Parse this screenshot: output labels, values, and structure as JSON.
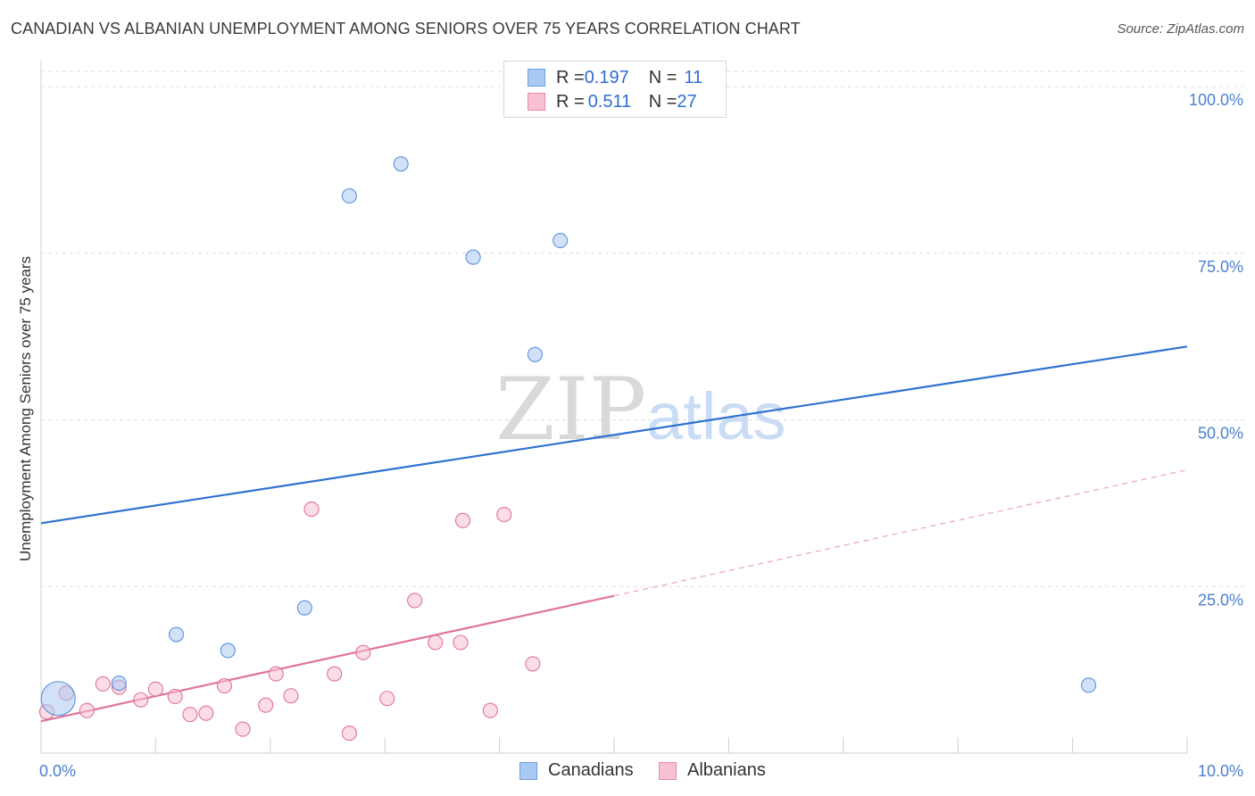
{
  "title": "CANADIAN VS ALBANIAN UNEMPLOYMENT AMONG SENIORS OVER 75 YEARS CORRELATION CHART",
  "source": "Source: ZipAtlas.com",
  "watermark": {
    "part1": "ZIP",
    "part2": "atlas"
  },
  "legend": {
    "rows": [
      {
        "r_label": "R = ",
        "r_value": "0.197",
        "n_label": "N = ",
        "n_value": "11",
        "color": "#a9c9f2",
        "border": "#6c9fe0"
      },
      {
        "r_label": "R = ",
        "r_value": "0.511",
        "n_label": "N = ",
        "n_value": "27",
        "color": "#f7c1d1",
        "border": "#e88aa7"
      }
    ]
  },
  "bottom_legend": [
    {
      "label": "Canadians",
      "color": "#a9c9f2",
      "border": "#6c9fe0"
    },
    {
      "label": "Albanians",
      "color": "#f7c1d1",
      "border": "#e88aa7"
    }
  ],
  "chart_data": {
    "type": "scatter",
    "title": "CANADIAN VS ALBANIAN UNEMPLOYMENT AMONG SENIORS OVER 75 YEARS CORRELATION CHART",
    "xlabel": "",
    "ylabel": "Unemployment Among Seniors over 75 years",
    "xlim": [
      0,
      10
    ],
    "ylim": [
      0,
      100
    ],
    "x_tick_labels": [
      "0.0%",
      "10.0%"
    ],
    "y_tick_values": [
      25,
      50,
      75,
      100
    ],
    "y_tick_labels": [
      "25.0%",
      "50.0%",
      "75.0%",
      "100.0%"
    ],
    "grid": true,
    "series": [
      {
        "name": "Canadians",
        "color": "#5b93dc",
        "fill": "rgba(169,201,242,0.55)",
        "points": [
          {
            "x": 0.15,
            "y": 8.2,
            "big": true
          },
          {
            "x": 0.68,
            "y": 10.5
          },
          {
            "x": 1.18,
            "y": 17.8
          },
          {
            "x": 1.63,
            "y": 15.4
          },
          {
            "x": 2.3,
            "y": 21.8
          },
          {
            "x": 2.69,
            "y": 83.6
          },
          {
            "x": 3.14,
            "y": 88.4
          },
          {
            "x": 3.77,
            "y": 74.4
          },
          {
            "x": 4.31,
            "y": 59.8
          },
          {
            "x": 4.53,
            "y": 76.9
          },
          {
            "x": 9.14,
            "y": 10.2
          }
        ],
        "trend": {
          "x0": 0,
          "y0": 34.5,
          "x1": 10,
          "y1": 61.0
        }
      },
      {
        "name": "Albanians",
        "color": "#e07398",
        "fill": "rgba(247,193,209,0.55)",
        "points": [
          {
            "x": 0.05,
            "y": 6.2
          },
          {
            "x": 0.22,
            "y": 9.0
          },
          {
            "x": 0.4,
            "y": 6.4
          },
          {
            "x": 0.54,
            "y": 10.4
          },
          {
            "x": 0.68,
            "y": 9.9
          },
          {
            "x": 0.87,
            "y": 8.0
          },
          {
            "x": 1.0,
            "y": 9.6
          },
          {
            "x": 1.17,
            "y": 8.5
          },
          {
            "x": 1.3,
            "y": 5.8
          },
          {
            "x": 1.44,
            "y": 6.0
          },
          {
            "x": 1.6,
            "y": 10.1
          },
          {
            "x": 1.76,
            "y": 3.6
          },
          {
            "x": 1.96,
            "y": 7.2
          },
          {
            "x": 2.05,
            "y": 11.9
          },
          {
            "x": 2.18,
            "y": 8.6
          },
          {
            "x": 2.36,
            "y": 36.6
          },
          {
            "x": 2.56,
            "y": 11.9
          },
          {
            "x": 2.69,
            "y": 3.0
          },
          {
            "x": 2.81,
            "y": 15.1
          },
          {
            "x": 3.02,
            "y": 8.2
          },
          {
            "x": 3.26,
            "y": 22.9
          },
          {
            "x": 3.44,
            "y": 16.6
          },
          {
            "x": 3.66,
            "y": 16.6
          },
          {
            "x": 3.68,
            "y": 34.9
          },
          {
            "x": 3.92,
            "y": 6.4
          },
          {
            "x": 4.04,
            "y": 35.8
          },
          {
            "x": 4.29,
            "y": 13.4
          }
        ],
        "trend": {
          "x0": 0,
          "y0": 4.8,
          "x1": 5.0,
          "y1": 23.6,
          "dash_x1": 10,
          "dash_y1": 42.5
        }
      }
    ]
  }
}
